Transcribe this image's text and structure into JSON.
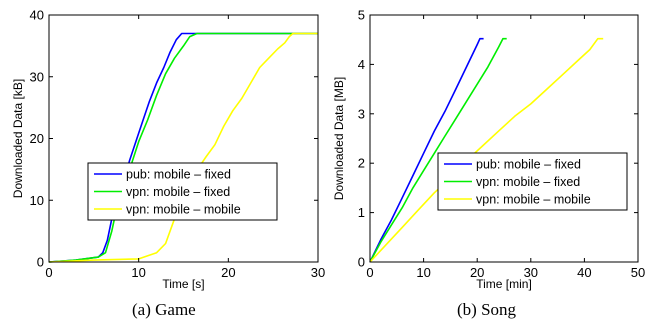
{
  "captions": [
    "(a)  Game",
    "(b)  Song"
  ],
  "chart_data": [
    {
      "type": "line",
      "title": "",
      "xlabel": "Time [s]",
      "ylabel": "Downloaded Data [kB]",
      "xlim": [
        0,
        30
      ],
      "ylim": [
        0,
        40
      ],
      "xticks": [
        0,
        10,
        20,
        30
      ],
      "yticks": [
        0,
        10,
        20,
        30,
        40
      ],
      "grid": false,
      "legend_position": "center-right",
      "series": [
        {
          "name": "pub: mobile – fixed",
          "color": "#0000ff",
          "x": [
            0,
            3,
            5.5,
            6.0,
            6.5,
            7.0,
            7.6,
            8.3,
            9.0,
            9.8,
            10.5,
            11.2,
            12.0,
            12.8,
            13.5,
            14.2,
            14.8,
            15.2,
            16,
            20,
            25,
            30
          ],
          "y": [
            0,
            0.3,
            0.8,
            1.5,
            3.5,
            7,
            10,
            13,
            16.5,
            20,
            23,
            26,
            29,
            31.5,
            34,
            36,
            37,
            37,
            37,
            37,
            37,
            37
          ]
        },
        {
          "name": "vpn: mobile – fixed",
          "color": "#00ee00",
          "x": [
            0,
            3,
            5.5,
            6.3,
            7.0,
            7.6,
            8.3,
            9.0,
            10.0,
            11.0,
            12.0,
            13.0,
            14.0,
            15.0,
            15.7,
            16.5,
            20,
            25,
            27,
            30
          ],
          "y": [
            0,
            0.3,
            0.8,
            1.5,
            5,
            9,
            12,
            15,
            19.5,
            23,
            27,
            30.5,
            33,
            35,
            36.5,
            37,
            37,
            37,
            37,
            37
          ]
        },
        {
          "name": "vpn: mobile – mobile",
          "color": "#ffff00",
          "x": [
            0,
            5,
            10,
            12.0,
            13.0,
            14.0,
            15.0,
            16.0,
            16.8,
            17.5,
            18.5,
            19.5,
            20.5,
            21.5,
            22.5,
            23.5,
            24.5,
            25.5,
            26.3,
            26.8,
            27.2,
            28,
            30
          ],
          "y": [
            0,
            0.3,
            0.5,
            1.5,
            3,
            7,
            10,
            14,
            15.5,
            17,
            19,
            22,
            24.5,
            26.5,
            29,
            31.5,
            33,
            34.5,
            35.5,
            36.5,
            37,
            37,
            37
          ]
        }
      ]
    },
    {
      "type": "line",
      "title": "",
      "xlabel": "Time [min]",
      "ylabel": "Downloaded Data [MB]",
      "xlim": [
        0,
        50
      ],
      "ylim": [
        0,
        5
      ],
      "xticks": [
        0,
        10,
        20,
        30,
        40,
        50
      ],
      "yticks": [
        0,
        1,
        2,
        3,
        4,
        5
      ],
      "grid": false,
      "legend_position": "center-right",
      "series": [
        {
          "name": "pub: mobile – fixed",
          "color": "#0000ff",
          "x": [
            0,
            2,
            4,
            6,
            8,
            10,
            12,
            14,
            16,
            18,
            20,
            20.5,
            21.2
          ],
          "y": [
            0,
            0.45,
            0.85,
            1.3,
            1.75,
            2.2,
            2.65,
            3.05,
            3.5,
            3.95,
            4.4,
            4.52,
            4.52
          ]
        },
        {
          "name": "vpn: mobile – fixed",
          "color": "#00ee00",
          "x": [
            0,
            2,
            4,
            6,
            8,
            10,
            12,
            14,
            16,
            18,
            20,
            22,
            24,
            24.8,
            25.5
          ],
          "y": [
            0,
            0.4,
            0.75,
            1.1,
            1.5,
            1.85,
            2.2,
            2.55,
            2.9,
            3.25,
            3.6,
            3.95,
            4.35,
            4.52,
            4.52
          ]
        },
        {
          "name": "vpn: mobile – mobile",
          "color": "#ffff00",
          "x": [
            0,
            3,
            6,
            9,
            12,
            15,
            18,
            21,
            24,
            27,
            30,
            33,
            36,
            39,
            41,
            42.5,
            43.5
          ],
          "y": [
            0,
            0.35,
            0.7,
            1.05,
            1.4,
            1.7,
            2.05,
            2.35,
            2.65,
            2.95,
            3.2,
            3.5,
            3.8,
            4.1,
            4.3,
            4.52,
            4.52
          ]
        }
      ]
    }
  ]
}
